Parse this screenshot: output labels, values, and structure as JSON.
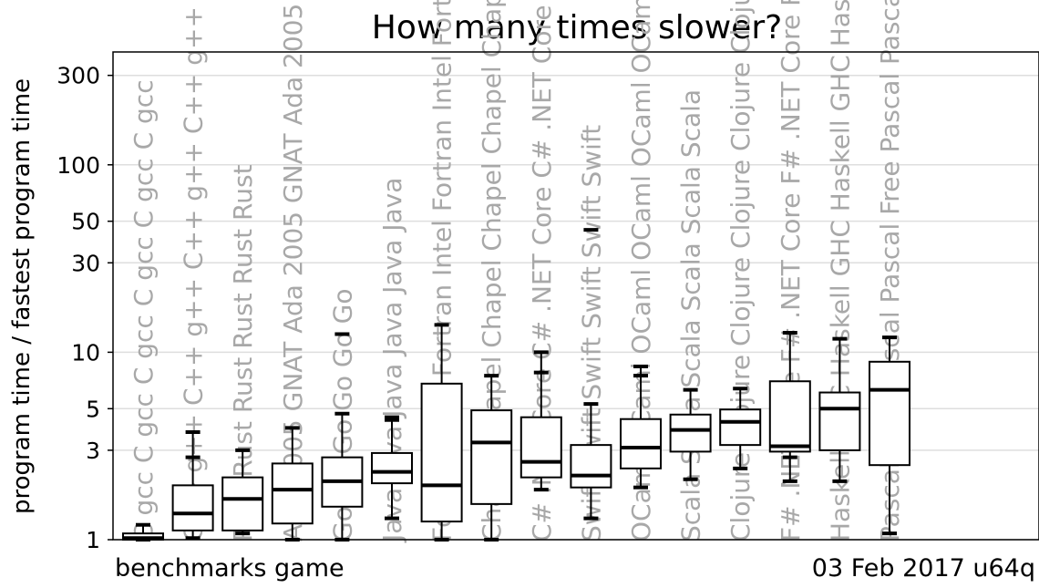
{
  "chart_data": {
    "type": "box",
    "title": "How many times slower?",
    "ylabel": "program time / fastest program time",
    "yscale": "log",
    "ylim": [
      1,
      400
    ],
    "yticks": [
      1,
      3,
      5,
      10,
      30,
      50,
      100,
      300
    ],
    "ytick_labels": [
      "1",
      "3",
      "5",
      "10",
      "30",
      "50",
      "100",
      "300"
    ],
    "footer_left": "benchmarks game",
    "footer_right": "03 Feb 2017 u64q",
    "label_color": "#a8a8a8",
    "series": [
      {
        "label": "C gcc",
        "whisker_low": 1.0,
        "q1": 1.0,
        "median": 1.02,
        "q3": 1.08,
        "whisker_high": 1.2
      },
      {
        "label": "C++ g++",
        "whisker_low": 1.02,
        "q1": 1.12,
        "median": 1.38,
        "q3": 1.95,
        "whisker_high": 3.75,
        "outliers": [
          2.75
        ]
      },
      {
        "label": "Rust",
        "whisker_low": 1.08,
        "q1": 1.12,
        "median": 1.65,
        "q3": 2.15,
        "whisker_high": 3.0
      },
      {
        "label": "Ada 2005 GNAT",
        "whisker_low": 1.0,
        "q1": 1.22,
        "median": 1.85,
        "q3": 2.55,
        "whisker_high": 3.95
      },
      {
        "label": "Go",
        "whisker_low": 1.0,
        "q1": 1.5,
        "median": 2.05,
        "q3": 2.75,
        "whisker_high": 4.7,
        "outliers": [
          12.5
        ]
      },
      {
        "label": "Java",
        "whisker_low": 1.3,
        "q1": 2.0,
        "median": 2.3,
        "q3": 2.9,
        "whisker_high": 4.5,
        "outliers": [
          4.35
        ]
      },
      {
        "label": "Fortran Intel",
        "whisker_low": 1.0,
        "q1": 1.25,
        "median": 1.95,
        "q3": 6.8,
        "whisker_high": 14.0
      },
      {
        "label": "Chapel",
        "whisker_low": 1.0,
        "q1": 1.55,
        "median": 3.3,
        "q3": 4.9,
        "whisker_high": 7.5
      },
      {
        "label": "C# .NET Core",
        "whisker_low": 1.85,
        "q1": 2.15,
        "median": 2.6,
        "q3": 4.5,
        "whisker_high": 10.0,
        "outliers": [
          7.8
        ]
      },
      {
        "label": "Swift",
        "whisker_low": 1.3,
        "q1": 1.9,
        "median": 2.2,
        "q3": 3.2,
        "whisker_high": 5.3,
        "outliers": [
          45.0
        ]
      },
      {
        "label": "OCaml",
        "whisker_low": 1.9,
        "q1": 2.4,
        "median": 3.1,
        "q3": 4.4,
        "whisker_high": 8.4,
        "outliers": [
          7.5
        ]
      },
      {
        "label": "Scala",
        "whisker_low": 2.1,
        "q1": 2.95,
        "median": 3.85,
        "q3": 4.65,
        "whisker_high": 6.3
      },
      {
        "label": "Clojure",
        "whisker_low": 2.4,
        "q1": 3.2,
        "median": 4.25,
        "q3": 4.95,
        "whisker_high": 6.4
      },
      {
        "label": "F# .NET Core",
        "whisker_low": 2.05,
        "q1": 2.95,
        "median": 3.15,
        "q3": 7.0,
        "whisker_high": 12.7,
        "outliers": [
          2.75
        ]
      },
      {
        "label": "Haskell GHC",
        "whisker_low": 2.05,
        "q1": 3.0,
        "median": 5.0,
        "q3": 6.1,
        "whisker_high": 11.8
      },
      {
        "label": "Pascal Free Pascal",
        "whisker_low": 1.08,
        "q1": 2.5,
        "median": 6.3,
        "q3": 8.9,
        "whisker_high": 12.0
      }
    ]
  }
}
